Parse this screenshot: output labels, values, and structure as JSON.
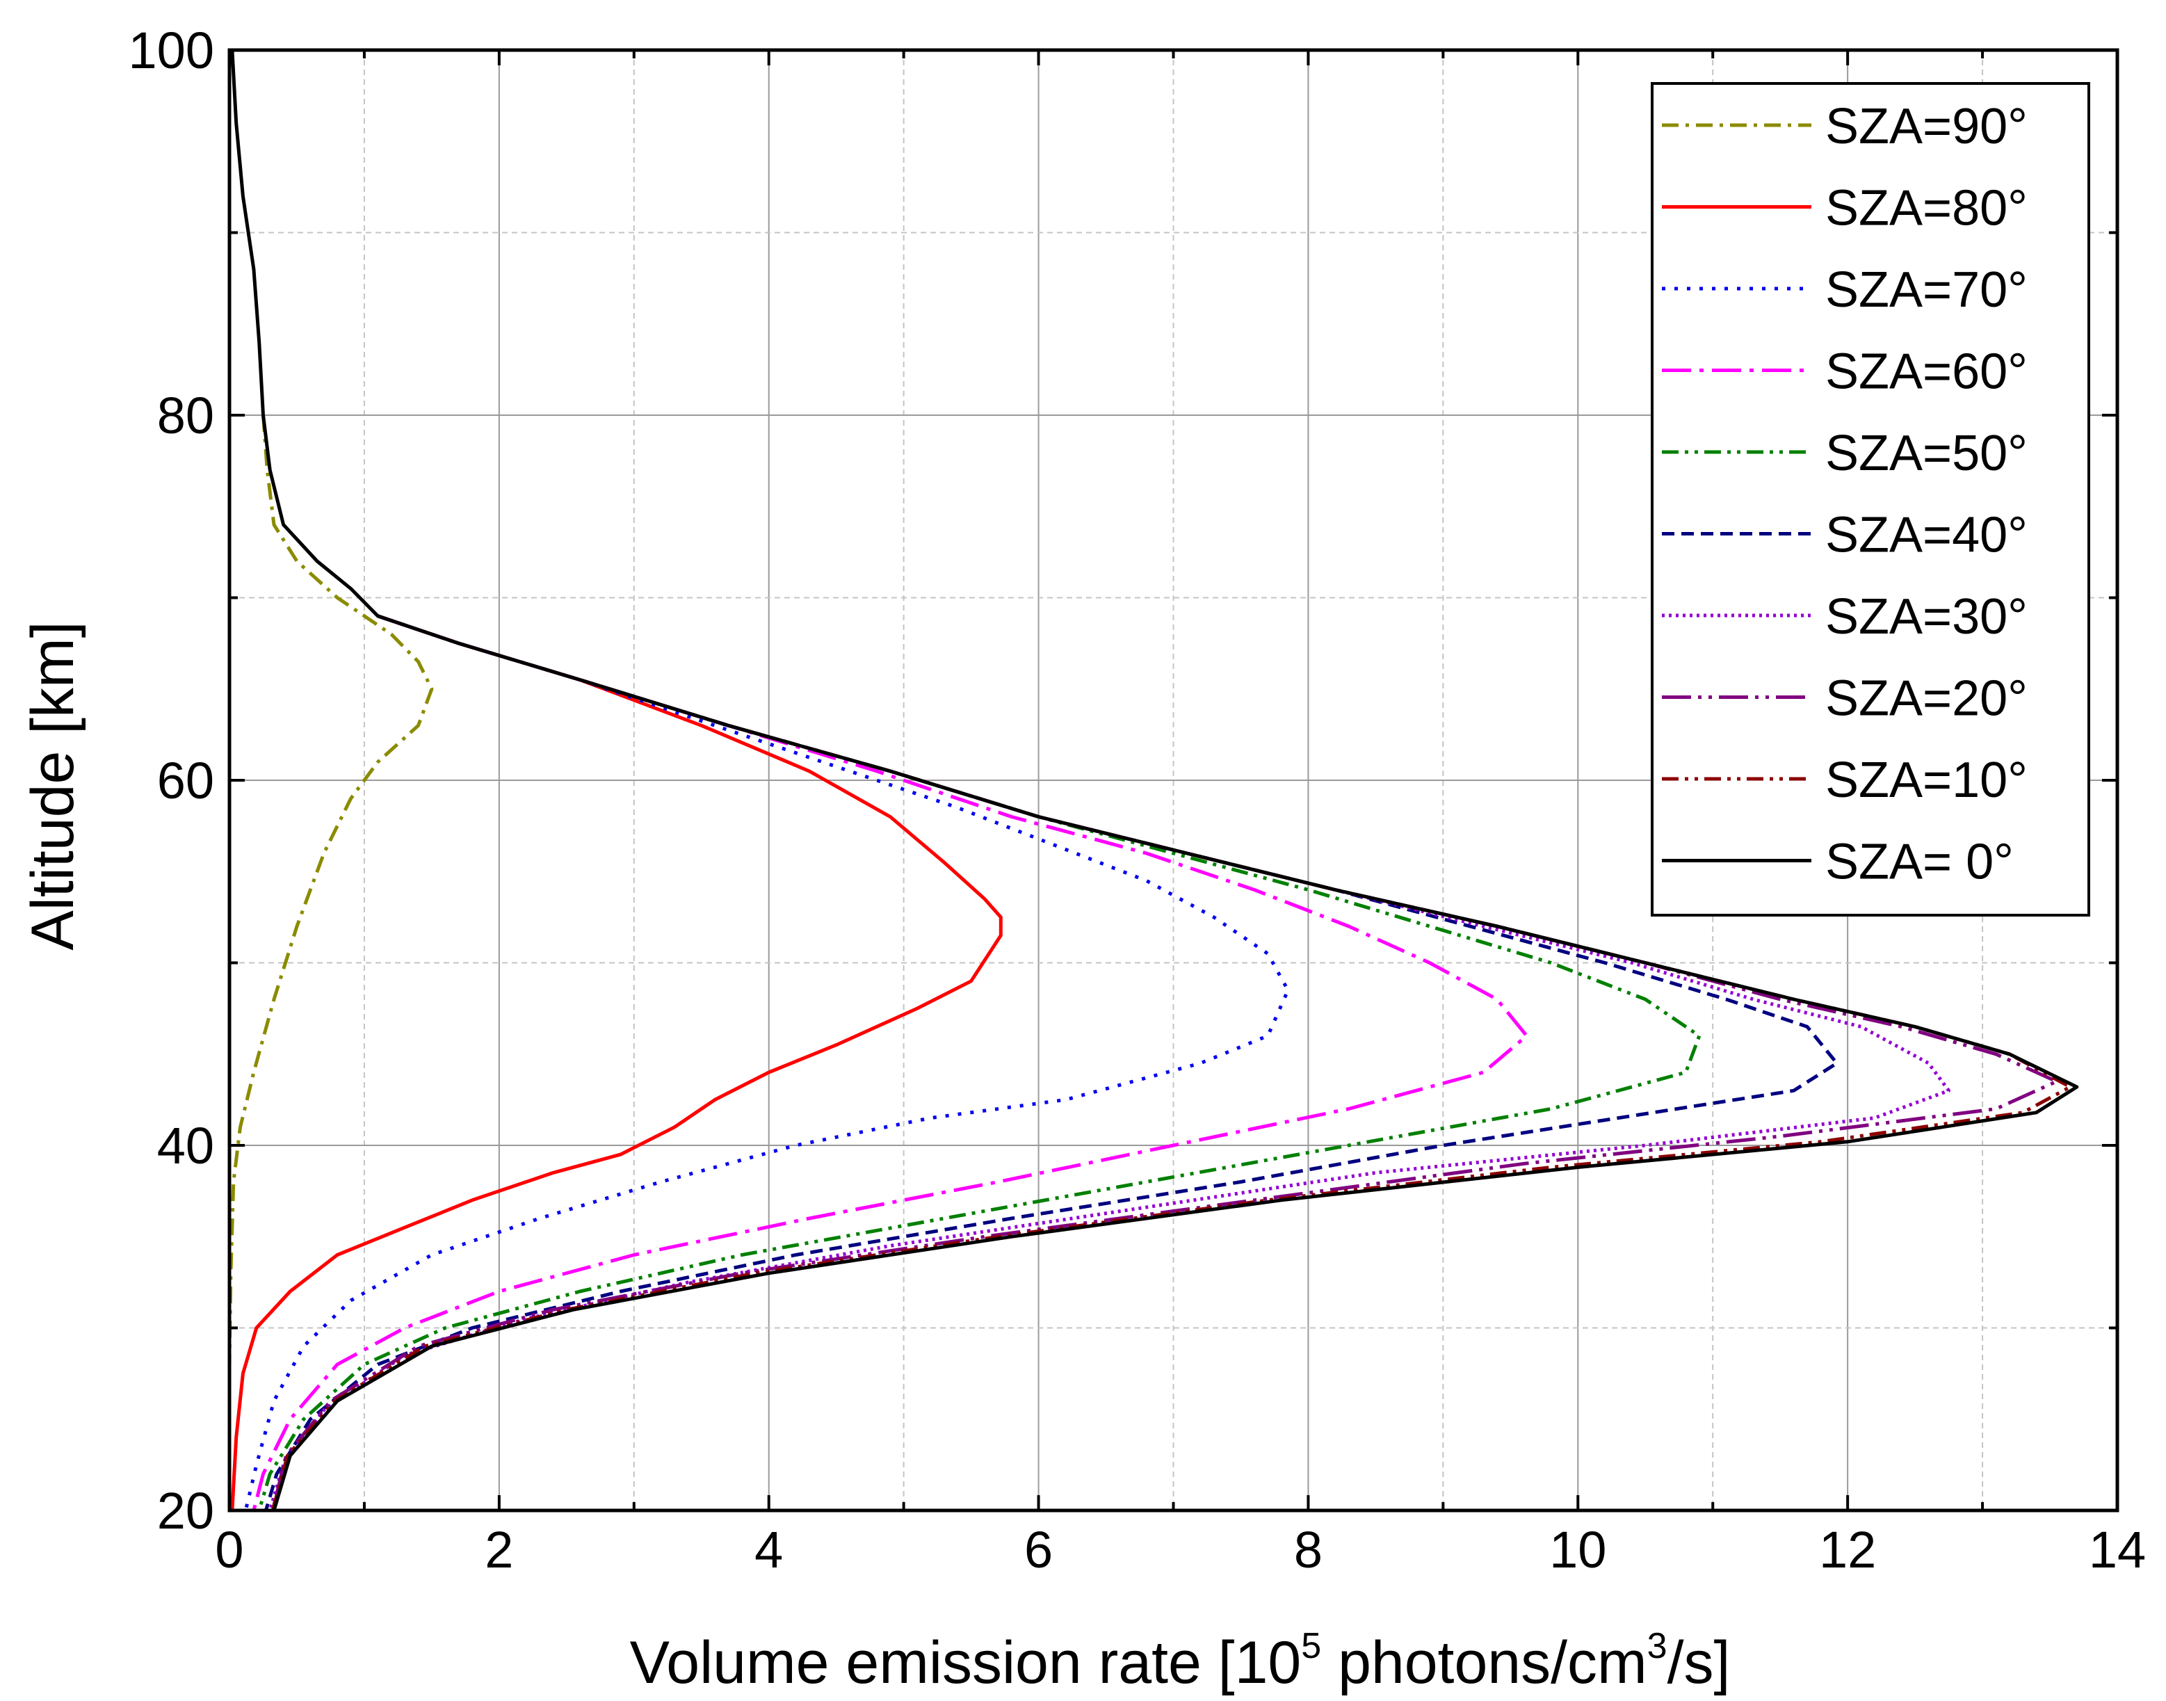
{
  "chart_data": {
    "type": "line",
    "title": "",
    "xlabel": {
      "pre": "Volume emission rate [10",
      "sup1": "5",
      "mid": " photons/cm",
      "sup2": "3",
      "post": "/s]"
    },
    "ylabel": "Altitude [km]",
    "xlim": [
      0,
      14
    ],
    "ylim": [
      20,
      100
    ],
    "xticks": [
      0,
      2,
      4,
      6,
      8,
      10,
      12,
      14
    ],
    "yticks": [
      20,
      40,
      60,
      80,
      100
    ],
    "xtick_labels": [
      "0",
      "2",
      "4",
      "6",
      "8",
      "10",
      "12",
      "14"
    ],
    "ytick_labels": [
      "20",
      "40",
      "60",
      "80",
      "100"
    ],
    "x_minor_step": 1,
    "y_minor_step": 10,
    "grid": true,
    "legend_position": "top-right",
    "series": [
      {
        "name": "SZA=90°",
        "color": "#8b8b00",
        "dash": "dashdot",
        "points": [
          [
            0.25,
            80
          ],
          [
            0.28,
            77
          ],
          [
            0.33,
            74
          ],
          [
            0.5,
            72
          ],
          [
            0.8,
            70
          ],
          [
            1.2,
            68
          ],
          [
            1.4,
            66.5
          ],
          [
            1.5,
            65
          ],
          [
            1.4,
            63
          ],
          [
            1.1,
            61
          ],
          [
            0.9,
            59
          ],
          [
            0.7,
            56
          ],
          [
            0.5,
            52
          ],
          [
            0.33,
            48
          ],
          [
            0.18,
            44
          ],
          [
            0.08,
            41
          ],
          [
            0.03,
            38
          ],
          [
            0.01,
            33
          ],
          [
            0,
            28
          ],
          [
            0,
            20
          ]
        ]
      },
      {
        "name": "SZA=80°",
        "color": "#ff0000",
        "dash": "solid",
        "points": [
          [
            1.1,
            69
          ],
          [
            1.7,
            67.5
          ],
          [
            2.6,
            65.5
          ],
          [
            3.5,
            63
          ],
          [
            4.3,
            60.5
          ],
          [
            4.9,
            58
          ],
          [
            5.3,
            55.5
          ],
          [
            5.6,
            53.5
          ],
          [
            5.72,
            52.5
          ],
          [
            5.72,
            51.5
          ],
          [
            5.5,
            49
          ],
          [
            5.1,
            47.5
          ],
          [
            4.5,
            45.5
          ],
          [
            4,
            44
          ],
          [
            3.6,
            42.5
          ],
          [
            3.3,
            41
          ],
          [
            2.9,
            39.5
          ],
          [
            2.4,
            38.5
          ],
          [
            1.8,
            37
          ],
          [
            1.3,
            35.5
          ],
          [
            0.8,
            34
          ],
          [
            0.45,
            32
          ],
          [
            0.2,
            30
          ],
          [
            0.1,
            27.5
          ],
          [
            0.05,
            24
          ],
          [
            0.02,
            20
          ]
        ]
      },
      {
        "name": "SZA=70°",
        "color": "#0000ee",
        "dash": "dot",
        "points": [
          [
            1.1,
            69
          ],
          [
            1.7,
            67.5
          ],
          [
            2.6,
            65.5
          ],
          [
            3.6,
            63
          ],
          [
            4.6,
            60.5
          ],
          [
            5.4,
            58.5
          ],
          [
            6.1,
            56.5
          ],
          [
            6.8,
            54.5
          ],
          [
            7.3,
            52.5
          ],
          [
            7.7,
            50.5
          ],
          [
            7.85,
            48.5
          ],
          [
            7.7,
            46
          ],
          [
            7.2,
            44.5
          ],
          [
            6.2,
            42.5
          ],
          [
            5.2,
            41.5
          ],
          [
            4.2,
            40
          ],
          [
            3.2,
            38
          ],
          [
            2.3,
            36
          ],
          [
            1.5,
            34
          ],
          [
            0.9,
            31.5
          ],
          [
            0.55,
            29
          ],
          [
            0.33,
            26
          ],
          [
            0.2,
            22.5
          ],
          [
            0.12,
            20
          ]
        ]
      },
      {
        "name": "SZA=60°",
        "color": "#ff00ff",
        "dash": "longdashdot",
        "points": [
          [
            1.1,
            69
          ],
          [
            1.7,
            67.5
          ],
          [
            2.6,
            65.5
          ],
          [
            3.7,
            63
          ],
          [
            4.8,
            60.5
          ],
          [
            5.8,
            58
          ],
          [
            6.8,
            56
          ],
          [
            7.6,
            54
          ],
          [
            8.3,
            52
          ],
          [
            8.9,
            50
          ],
          [
            9.4,
            48
          ],
          [
            9.62,
            46
          ],
          [
            9.3,
            44
          ],
          [
            8.3,
            42
          ],
          [
            7,
            40
          ],
          [
            5.7,
            38
          ],
          [
            4.3,
            36
          ],
          [
            3,
            34
          ],
          [
            2,
            32
          ],
          [
            1.3,
            30
          ],
          [
            0.8,
            28
          ],
          [
            0.45,
            25
          ],
          [
            0.25,
            22
          ],
          [
            0.18,
            20
          ]
        ]
      },
      {
        "name": "SZA=50°",
        "color": "#008000",
        "dash": "dashdotdot",
        "points": [
          [
            1.1,
            69
          ],
          [
            1.7,
            67.5
          ],
          [
            2.6,
            65.5
          ],
          [
            3.7,
            63
          ],
          [
            4.9,
            60.5
          ],
          [
            6,
            58
          ],
          [
            7,
            56
          ],
          [
            8,
            54
          ],
          [
            8.9,
            52
          ],
          [
            9.8,
            50
          ],
          [
            10.5,
            48
          ],
          [
            10.9,
            46
          ],
          [
            10.8,
            44
          ],
          [
            9.8,
            42
          ],
          [
            8.3,
            40
          ],
          [
            6.8,
            38
          ],
          [
            5.3,
            36
          ],
          [
            3.8,
            34
          ],
          [
            2.6,
            32
          ],
          [
            1.6,
            30
          ],
          [
            1,
            28
          ],
          [
            0.55,
            25
          ],
          [
            0.3,
            22
          ],
          [
            0.22,
            20
          ]
        ]
      },
      {
        "name": "SZA=40°",
        "color": "#000080",
        "dash": "dash",
        "points": [
          [
            1.1,
            69
          ],
          [
            1.7,
            67.5
          ],
          [
            2.6,
            65.5
          ],
          [
            3.7,
            63
          ],
          [
            4.9,
            60.5
          ],
          [
            6,
            58
          ],
          [
            7.1,
            56
          ],
          [
            8.2,
            54
          ],
          [
            9.2,
            52
          ],
          [
            10.2,
            50
          ],
          [
            11.1,
            48
          ],
          [
            11.7,
            46.5
          ],
          [
            11.92,
            44.5
          ],
          [
            11.6,
            43
          ],
          [
            10.3,
            41.5
          ],
          [
            9,
            40
          ],
          [
            7.5,
            38
          ],
          [
            5.8,
            36
          ],
          [
            4.2,
            34
          ],
          [
            2.9,
            32
          ],
          [
            1.8,
            30
          ],
          [
            1.1,
            28
          ],
          [
            0.6,
            25
          ],
          [
            0.35,
            22
          ],
          [
            0.27,
            20
          ]
        ]
      },
      {
        "name": "SZA=30°",
        "color": "#9400d3",
        "dash": "dense",
        "points": [
          [
            1.1,
            69
          ],
          [
            1.7,
            67.5
          ],
          [
            2.6,
            65.5
          ],
          [
            3.7,
            63
          ],
          [
            4.9,
            60.5
          ],
          [
            6,
            58
          ],
          [
            7.1,
            56
          ],
          [
            8.2,
            54
          ],
          [
            9.3,
            52
          ],
          [
            10.4,
            50
          ],
          [
            11.3,
            48
          ],
          [
            12.1,
            46.5
          ],
          [
            12.6,
            44.5
          ],
          [
            12.75,
            43
          ],
          [
            12.2,
            41.5
          ],
          [
            10.5,
            40
          ],
          [
            8.5,
            38.5
          ],
          [
            6.7,
            36.5
          ],
          [
            4.9,
            34.5
          ],
          [
            3.4,
            32.5
          ],
          [
            2.2,
            30.5
          ],
          [
            1.3,
            28.5
          ],
          [
            0.7,
            25.5
          ],
          [
            0.4,
            22.5
          ],
          [
            0.3,
            20
          ]
        ]
      },
      {
        "name": "SZA=20°",
        "color": "#800080",
        "dash": "longdashdotdot",
        "points": [
          [
            1.1,
            69
          ],
          [
            1.7,
            67.5
          ],
          [
            2.6,
            65.5
          ],
          [
            3.7,
            63
          ],
          [
            4.9,
            60.5
          ],
          [
            6,
            58
          ],
          [
            7.1,
            56
          ],
          [
            8.2,
            54
          ],
          [
            9.4,
            52
          ],
          [
            10.5,
            50
          ],
          [
            11.5,
            48
          ],
          [
            12.4,
            46.5
          ],
          [
            13.1,
            45
          ],
          [
            13.55,
            43.5
          ],
          [
            13.1,
            42
          ],
          [
            11.5,
            40.5
          ],
          [
            9.6,
            39
          ],
          [
            7.6,
            37
          ],
          [
            5.6,
            35
          ],
          [
            3.8,
            33
          ],
          [
            2.4,
            31
          ],
          [
            1.4,
            29
          ],
          [
            0.75,
            26
          ],
          [
            0.42,
            23
          ],
          [
            0.32,
            20
          ]
        ]
      },
      {
        "name": "SZA=10°",
        "color": "#8b0000",
        "dash": "dashdotdot",
        "points": [
          [
            1.1,
            69
          ],
          [
            1.7,
            67.5
          ],
          [
            2.6,
            65.5
          ],
          [
            3.7,
            63
          ],
          [
            4.9,
            60.5
          ],
          [
            6,
            58
          ],
          [
            7.1,
            56
          ],
          [
            8.2,
            54
          ],
          [
            9.4,
            52
          ],
          [
            10.5,
            50
          ],
          [
            11.6,
            48
          ],
          [
            12.5,
            46.5
          ],
          [
            13.2,
            45
          ],
          [
            13.65,
            43.2
          ],
          [
            13.3,
            41.8
          ],
          [
            11.8,
            40.2
          ],
          [
            9.8,
            38.8
          ],
          [
            7.7,
            37
          ],
          [
            5.7,
            35
          ],
          [
            3.9,
            33
          ],
          [
            2.5,
            31
          ],
          [
            1.45,
            29
          ],
          [
            0.78,
            26
          ],
          [
            0.43,
            23
          ],
          [
            0.32,
            20
          ]
        ]
      },
      {
        "name": "SZA= 0°",
        "color": "#000000",
        "dash": "solid",
        "points": [
          [
            0.02,
            100
          ],
          [
            0.05,
            96
          ],
          [
            0.1,
            92
          ],
          [
            0.18,
            88
          ],
          [
            0.22,
            84
          ],
          [
            0.25,
            80
          ],
          [
            0.3,
            77
          ],
          [
            0.4,
            74
          ],
          [
            0.65,
            72
          ],
          [
            0.9,
            70.5
          ],
          [
            1.1,
            69
          ],
          [
            1.7,
            67.5
          ],
          [
            2.6,
            65.5
          ],
          [
            3.7,
            63
          ],
          [
            4.9,
            60.5
          ],
          [
            6,
            58
          ],
          [
            7.1,
            56
          ],
          [
            8.2,
            54
          ],
          [
            9.4,
            52
          ],
          [
            10.5,
            50
          ],
          [
            11.6,
            48
          ],
          [
            12.5,
            46.5
          ],
          [
            13.2,
            45
          ],
          [
            13.7,
            43.2
          ],
          [
            13.4,
            41.8
          ],
          [
            12,
            40.2
          ],
          [
            10,
            38.8
          ],
          [
            7.8,
            37
          ],
          [
            5.8,
            35
          ],
          [
            4,
            33
          ],
          [
            2.55,
            31
          ],
          [
            1.5,
            29
          ],
          [
            0.8,
            26
          ],
          [
            0.45,
            23
          ],
          [
            0.33,
            20
          ]
        ]
      }
    ]
  }
}
